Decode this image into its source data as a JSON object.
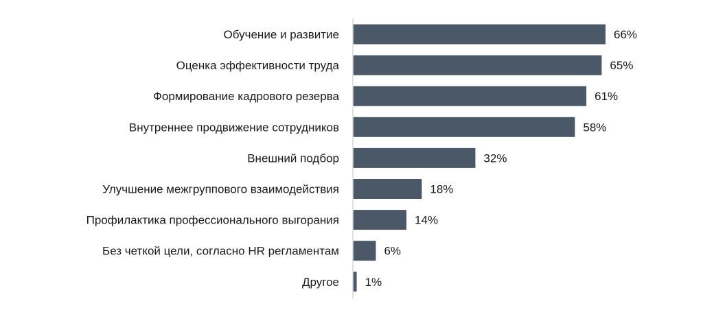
{
  "chart_data": {
    "type": "bar",
    "orientation": "horizontal",
    "categories": [
      "Обучение и развитие",
      "Оценка эффективности труда",
      "Формирование кадрового резерва",
      "Внутреннее продвижение сотрудников",
      "Внешний подбор",
      "Улучшение межгруппового взаимодействия",
      "Профилактика профессионального выгорания",
      "Без четкой цели, согласно HR регламентам",
      "Другое"
    ],
    "values": [
      66,
      65,
      61,
      58,
      32,
      18,
      14,
      6,
      1
    ],
    "value_labels": [
      "66%",
      "65%",
      "61%",
      "58%",
      "32%",
      "18%",
      "14%",
      "6%",
      "1%"
    ],
    "title": "",
    "xlabel": "",
    "ylabel": "",
    "xlim": [
      0,
      66
    ],
    "grid": false,
    "legend": "none",
    "bar_color": "#4a5868",
    "axis_color": "#d9d9d9"
  }
}
